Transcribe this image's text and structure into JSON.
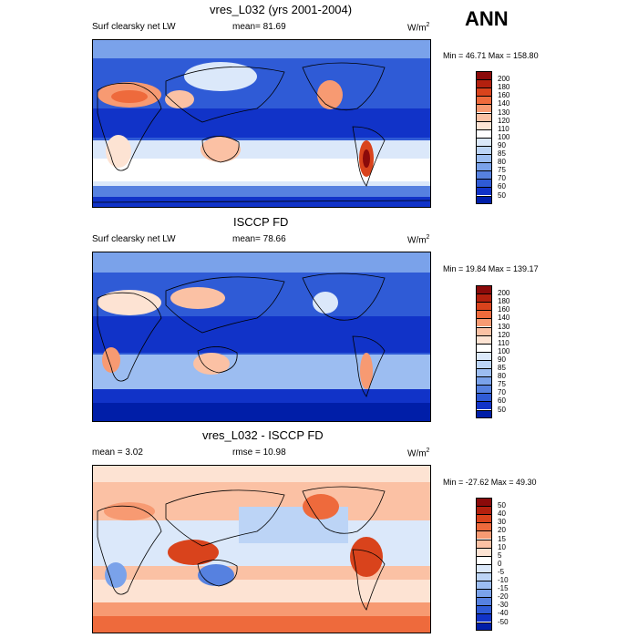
{
  "season": "ANN",
  "panels": [
    {
      "id": "model",
      "title": "vres_L032 (yrs 2001-2004)",
      "left_label": "Surf clearsky net LW",
      "center_label": "mean=  81.69",
      "units_base": "W/m",
      "units_exp": "2",
      "minmax": "Min =  46.71 Max = 158.80",
      "colorbar_labels": [
        "200",
        "180",
        "160",
        "140",
        "130",
        "120",
        "110",
        "100",
        "90",
        "85",
        "80",
        "75",
        "70",
        "60",
        "50"
      ],
      "colors": [
        "#8b0a0a",
        "#b3200e",
        "#d9431c",
        "#ee6a3c",
        "#f79a72",
        "#fbc1a4",
        "#fde3d3",
        "#ffffff",
        "#dbe8fa",
        "#bcd4f6",
        "#9cbdf1",
        "#7aa2ea",
        "#5681e0",
        "#2f5bd6",
        "#1133c8",
        "#001ea8"
      ],
      "chart_data": {
        "type": "heatmap",
        "variable": "Surf clearsky net LW",
        "units": "W/m2",
        "mean": 81.69,
        "min": 46.71,
        "max": 158.8
      }
    },
    {
      "id": "obs",
      "title": "ISCCP FD",
      "left_label": "Surf clearsky net LW",
      "center_label": "mean=  78.66",
      "units_base": "W/m",
      "units_exp": "2",
      "minmax": "Min =  19.84 Max = 139.17",
      "colorbar_labels": [
        "200",
        "180",
        "160",
        "140",
        "130",
        "120",
        "110",
        "100",
        "90",
        "85",
        "80",
        "75",
        "70",
        "60",
        "50"
      ],
      "colors": [
        "#8b0a0a",
        "#b3200e",
        "#d9431c",
        "#ee6a3c",
        "#f79a72",
        "#fbc1a4",
        "#fde3d3",
        "#ffffff",
        "#dbe8fa",
        "#bcd4f6",
        "#9cbdf1",
        "#7aa2ea",
        "#5681e0",
        "#2f5bd6",
        "#1133c8",
        "#001ea8"
      ],
      "chart_data": {
        "type": "heatmap",
        "variable": "Surf clearsky net LW",
        "units": "W/m2",
        "mean": 78.66,
        "min": 19.84,
        "max": 139.17
      }
    },
    {
      "id": "diff",
      "title": "vres_L032 - ISCCP FD",
      "left_label": "mean =   3.02",
      "center_label": "rmse =  10.98",
      "units_base": "W/m",
      "units_exp": "2",
      "minmax": "Min = -27.62 Max =  49.30",
      "colorbar_labels": [
        "50",
        "40",
        "30",
        "20",
        "15",
        "10",
        "5",
        "0",
        "-5",
        "-10",
        "-15",
        "-20",
        "-30",
        "-40",
        "-50"
      ],
      "colors": [
        "#8b0a0a",
        "#b3200e",
        "#d9431c",
        "#ee6a3c",
        "#f79a72",
        "#fbc1a4",
        "#fde3d3",
        "#ffffff",
        "#dbe8fa",
        "#bcd4f6",
        "#9cbdf1",
        "#7aa2ea",
        "#5681e0",
        "#2f5bd6",
        "#1133c8",
        "#001ea8"
      ],
      "chart_data": {
        "type": "heatmap",
        "variable": "vres_L032 - ISCCP FD",
        "units": "W/m2",
        "mean": 3.02,
        "rmse": 10.98,
        "min": -27.62,
        "max": 49.3
      }
    }
  ]
}
